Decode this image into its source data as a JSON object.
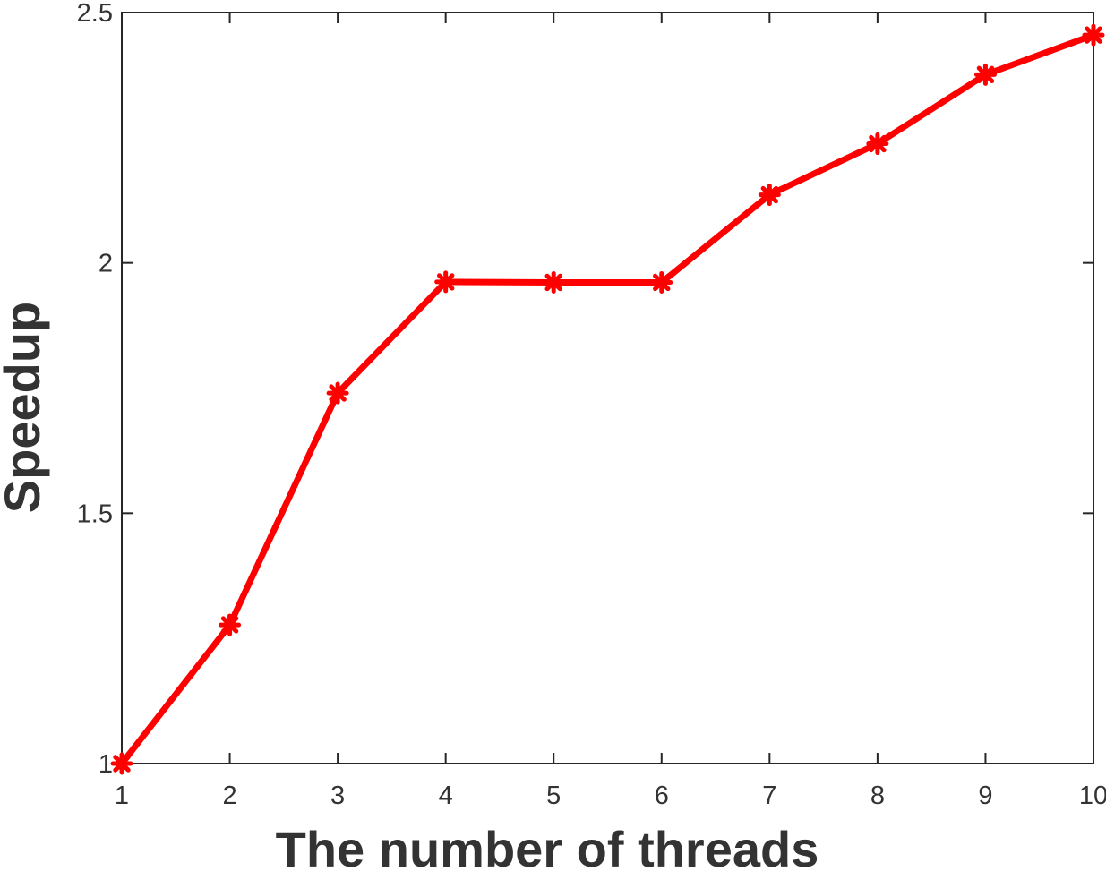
{
  "chart_data": {
    "type": "line",
    "title": "",
    "xlabel": "The number of threads",
    "ylabel": "Speedup",
    "xlim": [
      1,
      10
    ],
    "ylim": [
      1,
      2.5
    ],
    "x_ticks": [
      "1",
      "2",
      "3",
      "4",
      "5",
      "6",
      "7",
      "8",
      "9",
      "10"
    ],
    "y_ticks": [
      "1",
      "1.5",
      "2",
      "2.5"
    ],
    "grid": false,
    "legend": "none",
    "series": [
      {
        "color": "#ff0000",
        "marker": "star",
        "x": [
          1,
          2,
          3,
          4,
          5,
          6,
          7,
          8,
          9,
          10
        ],
        "y": [
          1.0,
          1.277,
          1.74,
          1.962,
          1.961,
          1.961,
          2.136,
          2.238,
          2.376,
          2.455
        ]
      }
    ]
  }
}
